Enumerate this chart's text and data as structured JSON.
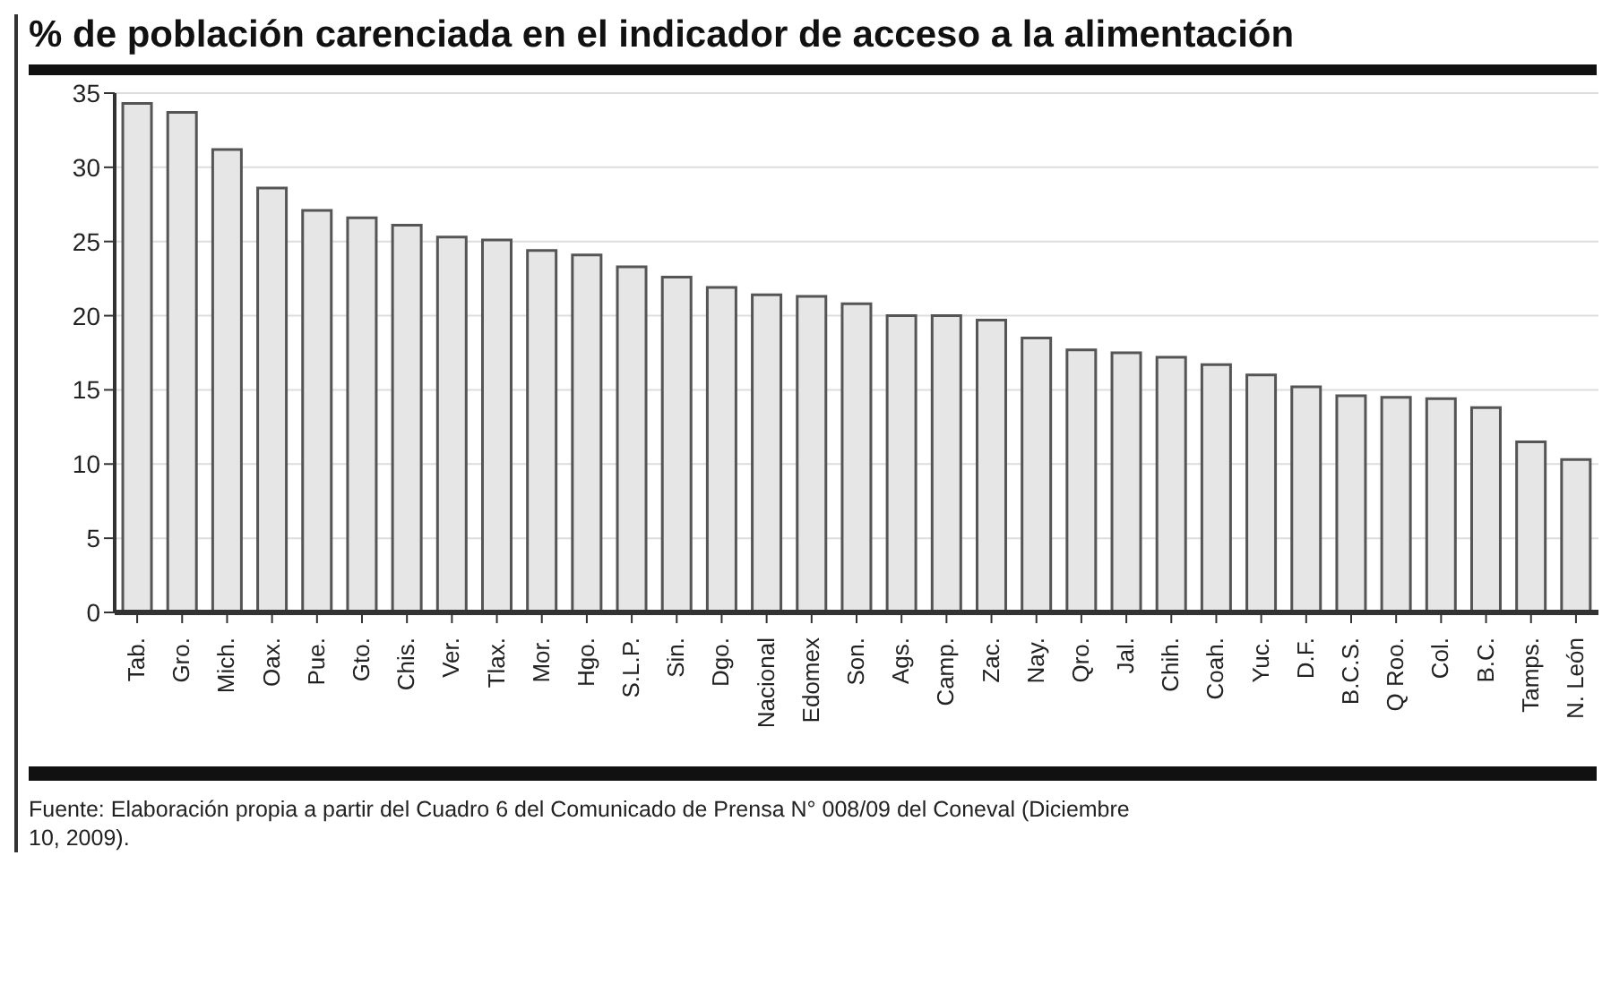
{
  "chart_data": {
    "type": "bar",
    "title": "% de población carenciada en el indicador de acceso a la alimentación",
    "categories": [
      "Tab.",
      "Gro.",
      "Mich.",
      "Oax.",
      "Pue.",
      "Gto.",
      "Chis.",
      "Ver.",
      "Tlax.",
      "Mor.",
      "Hgo.",
      "S.L.P.",
      "Sin.",
      "Dgo.",
      "Nacional",
      "Edomex",
      "Son.",
      "Ags.",
      "Camp.",
      "Zac.",
      "Nay.",
      "Qro.",
      "Jal.",
      "Chih.",
      "Coah.",
      "Yuc.",
      "D.F.",
      "B.C.S.",
      "Q Roo.",
      "Col.",
      "B.C.",
      "Tamps.",
      "N. León"
    ],
    "values": [
      34.3,
      33.7,
      31.2,
      28.6,
      27.1,
      26.6,
      26.1,
      25.3,
      25.1,
      24.4,
      24.1,
      23.3,
      22.6,
      21.9,
      21.4,
      21.3,
      20.8,
      20.0,
      20.0,
      19.7,
      18.5,
      17.7,
      17.5,
      17.2,
      16.7,
      16.0,
      15.2,
      14.6,
      14.5,
      14.4,
      13.8,
      11.5,
      10.3
    ],
    "color": "#e6e6e6",
    "ylim": [
      0,
      35
    ],
    "yticks": [
      0,
      5,
      10,
      15,
      20,
      25,
      30,
      35
    ],
    "grid": "y",
    "annotations": [
      "Fuente: Elaboración propia a partir del Cuadro 6 del Comunicado de Prensa N° 008/09 del Coneval (Diciembre 10, 2009)."
    ]
  }
}
